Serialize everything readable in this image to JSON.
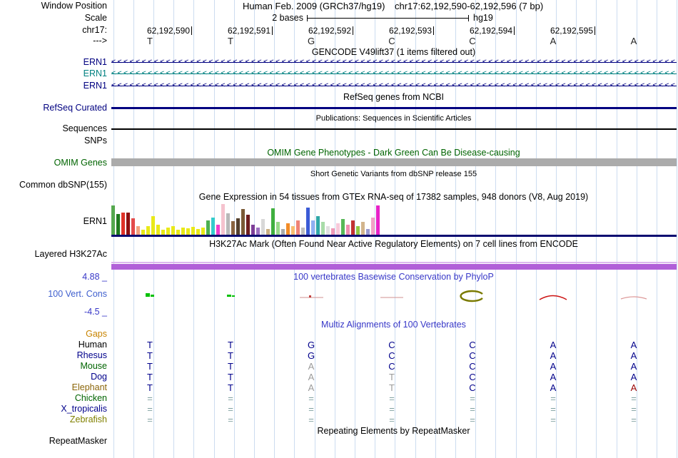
{
  "header": {
    "window_position_label": "Window Position",
    "assembly": "Human Feb. 2009 (GRCh37/hg19)",
    "position": "chr17:62,192,590-62,192,596 (7 bp)",
    "scale_label": "Scale",
    "scale_text": "2 bases",
    "scale_right": "hg19",
    "chrom_label": "chr17:",
    "arrow_label": "--->",
    "tick_labels": [
      "62,192,590",
      "62,192,591",
      "62,192,592",
      "62,192,593",
      "62,192,594",
      "62,192,595"
    ],
    "bases": [
      "T",
      "T",
      "G",
      "C",
      "C",
      "A",
      "A"
    ]
  },
  "tracks": {
    "gencode_title": "GENCODE V49lift37 (1 items filtered out)",
    "gene_rows": [
      {
        "label": "ERN1",
        "color": "#000080"
      },
      {
        "label": "ERN1",
        "color": "#008080"
      },
      {
        "label": "ERN1",
        "color": "#000080"
      }
    ],
    "refseq_title": "RefSeq genes from NCBI",
    "refseq_label": "RefSeq Curated",
    "pubs_title": "Publications: Sequences in Scientific Articles",
    "sequences_label": "Sequences",
    "snps_label": "SNPs",
    "omim_title": "OMIM Gene Phenotypes - Dark Green Can Be Disease-causing",
    "omim_label": "OMIM Genes",
    "dbsnp_title": "Short Genetic Variants from dbSNP release 155",
    "dbsnp_label": "Common dbSNP(155)",
    "gtex_title": "Gene Expression in 54 tissues from GTEx RNA-seq of 17382 samples, 948 donors (V8, Aug 2019)",
    "gtex_label": "ERN1",
    "h3k27ac_title": "H3K27Ac Mark (Often Found Near Active Regulatory Elements) on 7 cell lines from ENCODE",
    "h3k27ac_label": "Layered H3K27Ac",
    "phylop_title": "100 vertebrates Basewise Conservation by PhyloP",
    "phylop_max": "4.88 _",
    "phylop_label": "100 Vert. Cons",
    "phylop_min": "-4.5 _",
    "multiz_title": "Multiz Alignments of 100 Vertebrates",
    "repeat_title": "Repeating Elements by RepeatMasker",
    "repeat_label": "RepeatMasker"
  },
  "chart_data": {
    "type": "bar",
    "title": "Gene Expression in 54 tissues from GTEx RNA-seq of 17382 samples, 948 donors (V8, Aug 2019)",
    "series_label": "ERN1",
    "note": "per-tissue expression bars, color = GTEx tissue color, value = bar height (relative expression)",
    "bars": [
      [
        "#55a84f",
        42
      ],
      [
        "#1f7a1f",
        30
      ],
      [
        "#e03228",
        32
      ],
      [
        "#8f1010",
        32
      ],
      [
        "#e34b4b",
        24
      ],
      [
        "#f2a27e",
        13
      ],
      [
        "#e9e918",
        8
      ],
      [
        "#e9e918",
        13
      ],
      [
        "#e9e918",
        27
      ],
      [
        "#e9e918",
        15
      ],
      [
        "#e9e918",
        8
      ],
      [
        "#e9e918",
        11
      ],
      [
        "#e9e918",
        13
      ],
      [
        "#e9e918",
        8
      ],
      [
        "#e9e918",
        11
      ],
      [
        "#e9e918",
        10
      ],
      [
        "#e9e918",
        12
      ],
      [
        "#e9e918",
        9
      ],
      [
        "#e9e918",
        11
      ],
      [
        "#4caf50",
        21
      ],
      [
        "#33cccc",
        25
      ],
      [
        "#ee3fcc",
        15
      ],
      [
        "#f5c3ce",
        44
      ],
      [
        "#b8b8b8",
        31
      ],
      [
        "#8a6440",
        20
      ],
      [
        "#54402e",
        24
      ],
      [
        "#7b5a36",
        37
      ],
      [
        "#6e1e1e",
        29
      ],
      [
        "#7d3f98",
        15
      ],
      [
        "#9b6fc0",
        11
      ],
      [
        "#d8d8d8",
        23
      ],
      [
        "#c9ae80",
        9
      ],
      [
        "#3faf3f",
        38
      ],
      [
        "#98d989",
        19
      ],
      [
        "#ababab",
        9
      ],
      [
        "#f28c28",
        17
      ],
      [
        "#f7bd72",
        13
      ],
      [
        "#ef8377",
        21
      ],
      [
        "#bfbfbf",
        11
      ],
      [
        "#3b5bd6",
        39
      ],
      [
        "#8fb0f2",
        21
      ],
      [
        "#2fa8a8",
        27
      ],
      [
        "#a8dca8",
        19
      ],
      [
        "#e0e0e0",
        13
      ],
      [
        "#ef9ab8",
        10
      ],
      [
        "#f7c9da",
        17
      ],
      [
        "#57b857",
        23
      ],
      [
        "#ef8cb0",
        15
      ],
      [
        "#c23232",
        21
      ],
      [
        "#90c844",
        13
      ],
      [
        "#d2b48c",
        19
      ],
      [
        "#9a9ad0",
        9
      ],
      [
        "#f2a2c6",
        25
      ],
      [
        "#e822c8",
        42
      ]
    ]
  },
  "alignment": {
    "gaps_label": "Gaps",
    "rows": [
      {
        "label": "Human",
        "label_color": "#000000",
        "bases": [
          "T",
          "T",
          "G",
          "C",
          "C",
          "A",
          "A"
        ],
        "colors": [
          "n",
          "n",
          "n",
          "n",
          "n",
          "n",
          "n"
        ]
      },
      {
        "label": "Rhesus",
        "label_color": "#00008b",
        "bases": [
          "T",
          "T",
          "G",
          "C",
          "C",
          "A",
          "A"
        ],
        "colors": [
          "n",
          "n",
          "n",
          "n",
          "n",
          "n",
          "n"
        ]
      },
      {
        "label": "Mouse",
        "label_color": "#006400",
        "bases": [
          "T",
          "T",
          "A",
          "C",
          "C",
          "A",
          "A"
        ],
        "colors": [
          "n",
          "n",
          "g",
          "n",
          "n",
          "n",
          "n"
        ]
      },
      {
        "label": "Dog",
        "label_color": "#00008b",
        "bases": [
          "T",
          "T",
          "A",
          "T",
          "C",
          "A",
          "A"
        ],
        "colors": [
          "n",
          "n",
          "g",
          "g",
          "n",
          "n",
          "n"
        ]
      },
      {
        "label": "Elephant",
        "label_color": "#8b6508",
        "bases": [
          "T",
          "T",
          "A",
          "T",
          "C",
          "A",
          "A"
        ],
        "colors": [
          "n",
          "n",
          "g",
          "g",
          "n",
          "n",
          "r"
        ]
      },
      {
        "label": "Chicken",
        "label_color": "#006400",
        "bases": [
          "=",
          "=",
          "=",
          "=",
          "=",
          "=",
          "="
        ],
        "colors": [
          "e",
          "e",
          "e",
          "e",
          "e",
          "e",
          "e"
        ]
      },
      {
        "label": "X_tropicalis",
        "label_color": "#00008b",
        "bases": [
          "=",
          "=",
          "=",
          "=",
          "=",
          "=",
          "="
        ],
        "colors": [
          "e",
          "e",
          "e",
          "e",
          "e",
          "e",
          "e"
        ]
      },
      {
        "label": "Zebrafish",
        "label_color": "#808000",
        "bases": [
          "=",
          "=",
          "=",
          "=",
          "=",
          "=",
          "="
        ],
        "colors": [
          "e",
          "e",
          "e",
          "e",
          "e",
          "e",
          "e"
        ]
      }
    ]
  }
}
